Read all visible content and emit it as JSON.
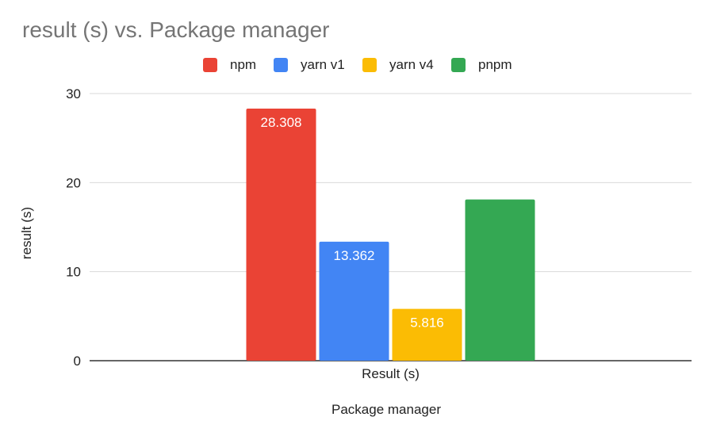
{
  "chart_data": {
    "type": "bar",
    "title": "result (s) vs. Package manager",
    "xlabel": "Package manager",
    "ylabel": "result (s)",
    "categories": [
      "Result (s)"
    ],
    "series": [
      {
        "name": "npm",
        "values": [
          28.308
        ],
        "color": "#EA4335",
        "label": "28.308"
      },
      {
        "name": "yarn v1",
        "values": [
          13.362
        ],
        "color": "#4285F4",
        "label": "13.362"
      },
      {
        "name": "yarn v4",
        "values": [
          5.816
        ],
        "color": "#FBBC04",
        "label": "5.816"
      },
      {
        "name": "pnpm",
        "values": [
          18.1
        ],
        "color": "#34A853",
        "label": ""
      }
    ],
    "ylim": [
      0,
      30
    ],
    "yticks": [
      "0",
      "10",
      "20",
      "30"
    ],
    "grid": true,
    "legend_position": "top"
  }
}
